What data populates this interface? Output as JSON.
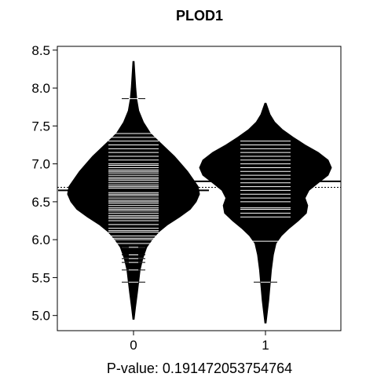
{
  "chart_data": {
    "type": "beanplot",
    "title": "PLOD1",
    "footer": "P-value: 0.191472053754764",
    "categories": [
      "0",
      "1"
    ],
    "yticks": [
      "5.0",
      "5.5",
      "6.0",
      "6.5",
      "7.0",
      "7.5",
      "8.0",
      "8.5"
    ],
    "ylim": [
      4.8,
      8.55
    ],
    "overall_mean": 6.69,
    "groups": [
      {
        "name": "0",
        "mean": 6.65,
        "min": 4.95,
        "max": 8.35,
        "density": [
          [
            4.95,
            0.01
          ],
          [
            5.1,
            0.03
          ],
          [
            5.3,
            0.06
          ],
          [
            5.45,
            0.08
          ],
          [
            5.6,
            0.1
          ],
          [
            5.75,
            0.14
          ],
          [
            5.9,
            0.2
          ],
          [
            6.0,
            0.28
          ],
          [
            6.1,
            0.38
          ],
          [
            6.2,
            0.52
          ],
          [
            6.3,
            0.7
          ],
          [
            6.4,
            0.86
          ],
          [
            6.5,
            0.95
          ],
          [
            6.6,
            1.0
          ],
          [
            6.7,
            0.98
          ],
          [
            6.8,
            0.9
          ],
          [
            6.9,
            0.82
          ],
          [
            7.0,
            0.72
          ],
          [
            7.1,
            0.62
          ],
          [
            7.2,
            0.5
          ],
          [
            7.3,
            0.38
          ],
          [
            7.4,
            0.26
          ],
          [
            7.55,
            0.15
          ],
          [
            7.7,
            0.08
          ],
          [
            7.85,
            0.05
          ],
          [
            8.0,
            0.035
          ],
          [
            8.2,
            0.02
          ],
          [
            8.35,
            0.01
          ]
        ],
        "points": [
          5.44,
          5.6,
          5.7,
          5.75,
          5.8,
          5.9,
          5.95,
          6.0,
          6.02,
          6.05,
          6.1,
          6.12,
          6.15,
          6.2,
          6.25,
          6.28,
          6.3,
          6.32,
          6.35,
          6.38,
          6.4,
          6.42,
          6.45,
          6.48,
          6.5,
          6.52,
          6.55,
          6.58,
          6.6,
          6.62,
          6.65,
          6.68,
          6.7,
          6.72,
          6.75,
          6.78,
          6.8,
          6.82,
          6.85,
          6.88,
          6.9,
          6.92,
          6.95,
          6.98,
          7.0,
          7.05,
          7.1,
          7.15,
          7.2,
          7.25,
          7.3,
          7.35,
          7.4,
          7.86
        ]
      },
      {
        "name": "1",
        "mean": 6.77,
        "min": 4.9,
        "max": 7.8,
        "density": [
          [
            4.9,
            0.01
          ],
          [
            5.05,
            0.03
          ],
          [
            5.2,
            0.05
          ],
          [
            5.4,
            0.07
          ],
          [
            5.6,
            0.09
          ],
          [
            5.8,
            0.12
          ],
          [
            5.95,
            0.16
          ],
          [
            6.05,
            0.24
          ],
          [
            6.15,
            0.36
          ],
          [
            6.25,
            0.5
          ],
          [
            6.35,
            0.62
          ],
          [
            6.45,
            0.64
          ],
          [
            6.55,
            0.6
          ],
          [
            6.65,
            0.66
          ],
          [
            6.75,
            0.8
          ],
          [
            6.85,
            0.95
          ],
          [
            6.95,
            1.0
          ],
          [
            7.05,
            0.95
          ],
          [
            7.15,
            0.8
          ],
          [
            7.25,
            0.6
          ],
          [
            7.35,
            0.42
          ],
          [
            7.45,
            0.26
          ],
          [
            7.55,
            0.14
          ],
          [
            7.65,
            0.07
          ],
          [
            7.75,
            0.03
          ],
          [
            7.8,
            0.01
          ]
        ],
        "points": [
          5.44,
          5.98,
          6.3,
          6.35,
          6.4,
          6.42,
          6.5,
          6.55,
          6.6,
          6.65,
          6.7,
          6.75,
          6.8,
          6.85,
          6.9,
          6.95,
          7.0,
          7.05,
          7.1,
          7.15,
          7.2,
          7.25,
          7.3
        ]
      }
    ]
  }
}
